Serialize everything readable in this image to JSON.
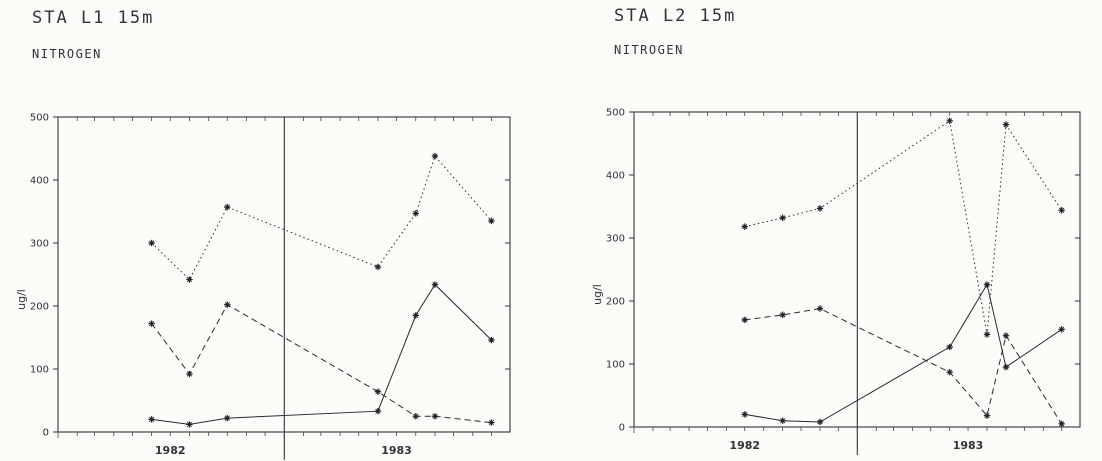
{
  "chart_data": [
    {
      "type": "line",
      "title": "STA L1   15m",
      "subtitle": "NITROGEN",
      "ylabel": "ug/l",
      "ylim": [
        0,
        500
      ],
      "yticks": [
        0,
        100,
        200,
        300,
        400,
        500
      ],
      "xlim": [
        "1982-01-01",
        "1983-12-31"
      ],
      "year_divider": "1983-01-01",
      "xticks": [
        {
          "label": "1982",
          "date": "1982-07-01"
        },
        {
          "label": "1983",
          "date": "1983-07-01"
        }
      ],
      "series": [
        {
          "line_style": "dotted",
          "points": [
            [
              "1982-06-01",
              300
            ],
            [
              "1982-08-01",
              242
            ],
            [
              "1982-10-01",
              357
            ],
            [
              "1983-06-01",
              262
            ],
            [
              "1983-08-01",
              347
            ],
            [
              "1983-09-01",
              438
            ],
            [
              "1983-12-01",
              335
            ]
          ]
        },
        {
          "line_style": "dashed",
          "points": [
            [
              "1982-06-01",
              172
            ],
            [
              "1982-08-01",
              92
            ],
            [
              "1982-10-01",
              202
            ],
            [
              "1983-06-01",
              64
            ],
            [
              "1983-08-01",
              25
            ],
            [
              "1983-09-01",
              25
            ],
            [
              "1983-12-01",
              15
            ]
          ]
        },
        {
          "line_style": "solid",
          "points": [
            [
              "1982-06-01",
              20
            ],
            [
              "1982-08-01",
              12
            ],
            [
              "1982-10-01",
              22
            ],
            [
              "1983-06-01",
              33
            ],
            [
              "1983-08-01",
              185
            ],
            [
              "1983-09-01",
              234
            ],
            [
              "1983-12-01",
              146
            ]
          ]
        }
      ]
    },
    {
      "type": "line",
      "title": "STA L2   15m",
      "subtitle": "NITROGEN",
      "ylabel": "ug/l",
      "ylim": [
        0,
        500
      ],
      "yticks": [
        0,
        100,
        200,
        300,
        400,
        500
      ],
      "xlim": [
        "1982-01-01",
        "1983-12-31"
      ],
      "year_divider": "1983-01-01",
      "xticks": [
        {
          "label": "1982",
          "date": "1982-07-01"
        },
        {
          "label": "1983",
          "date": "1983-07-01"
        }
      ],
      "series": [
        {
          "line_style": "dotted",
          "points": [
            [
              "1982-07-01",
              318
            ],
            [
              "1982-09-01",
              332
            ],
            [
              "1982-11-01",
              347
            ],
            [
              "1983-06-01",
              486
            ],
            [
              "1983-08-01",
              147
            ],
            [
              "1983-09-01",
              480
            ],
            [
              "1983-12-01",
              344
            ]
          ]
        },
        {
          "line_style": "dashed",
          "points": [
            [
              "1982-07-01",
              170
            ],
            [
              "1982-09-01",
              178
            ],
            [
              "1982-11-01",
              188
            ],
            [
              "1983-06-01",
              87
            ],
            [
              "1983-08-01",
              18
            ],
            [
              "1983-09-01",
              145
            ],
            [
              "1983-12-01",
              5
            ]
          ]
        },
        {
          "line_style": "solid",
          "points": [
            [
              "1982-07-01",
              20
            ],
            [
              "1982-09-01",
              10
            ],
            [
              "1982-11-01",
              8
            ],
            [
              "1983-06-01",
              127
            ],
            [
              "1983-08-01",
              226
            ],
            [
              "1983-09-01",
              95
            ],
            [
              "1983-12-01",
              155
            ]
          ]
        }
      ]
    }
  ]
}
